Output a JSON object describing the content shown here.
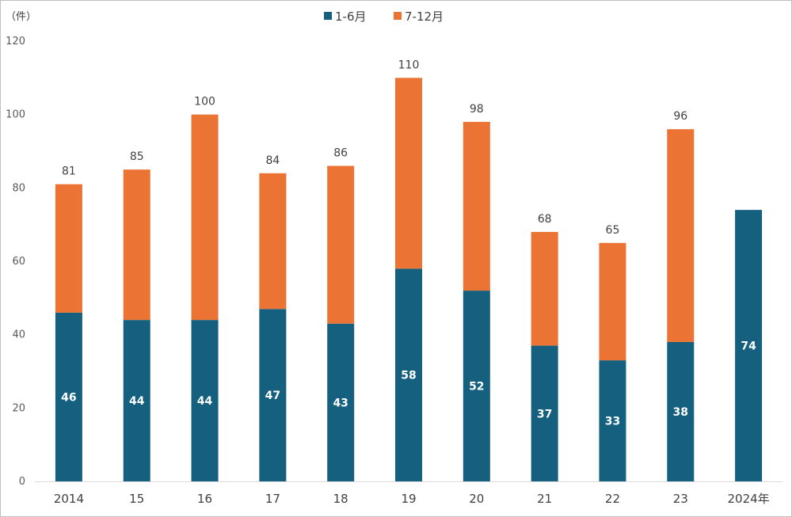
{
  "chart_data": {
    "type": "bar",
    "stacked": true,
    "unit_label": "（件）",
    "categories": [
      "2014",
      "15",
      "16",
      "17",
      "18",
      "19",
      "20",
      "21",
      "22",
      "23",
      "2024年"
    ],
    "series": [
      {
        "name": "1-6月",
        "color": "#16607f",
        "values": [
          46,
          44,
          44,
          47,
          43,
          58,
          52,
          37,
          33,
          38,
          74
        ]
      },
      {
        "name": "7-12月",
        "color": "#eb7434",
        "values": [
          35,
          41,
          56,
          37,
          43,
          52,
          46,
          31,
          32,
          58,
          null
        ]
      }
    ],
    "totals": [
      "81",
      "85",
      "100",
      "84",
      "86",
      "110",
      "98",
      "68",
      "65",
      "96",
      ""
    ],
    "ylim": [
      0,
      120
    ],
    "yticks": [
      "0",
      "20",
      "40",
      "60",
      "80",
      "100",
      "120"
    ],
    "legend_position": "top-center",
    "grid": false
  }
}
